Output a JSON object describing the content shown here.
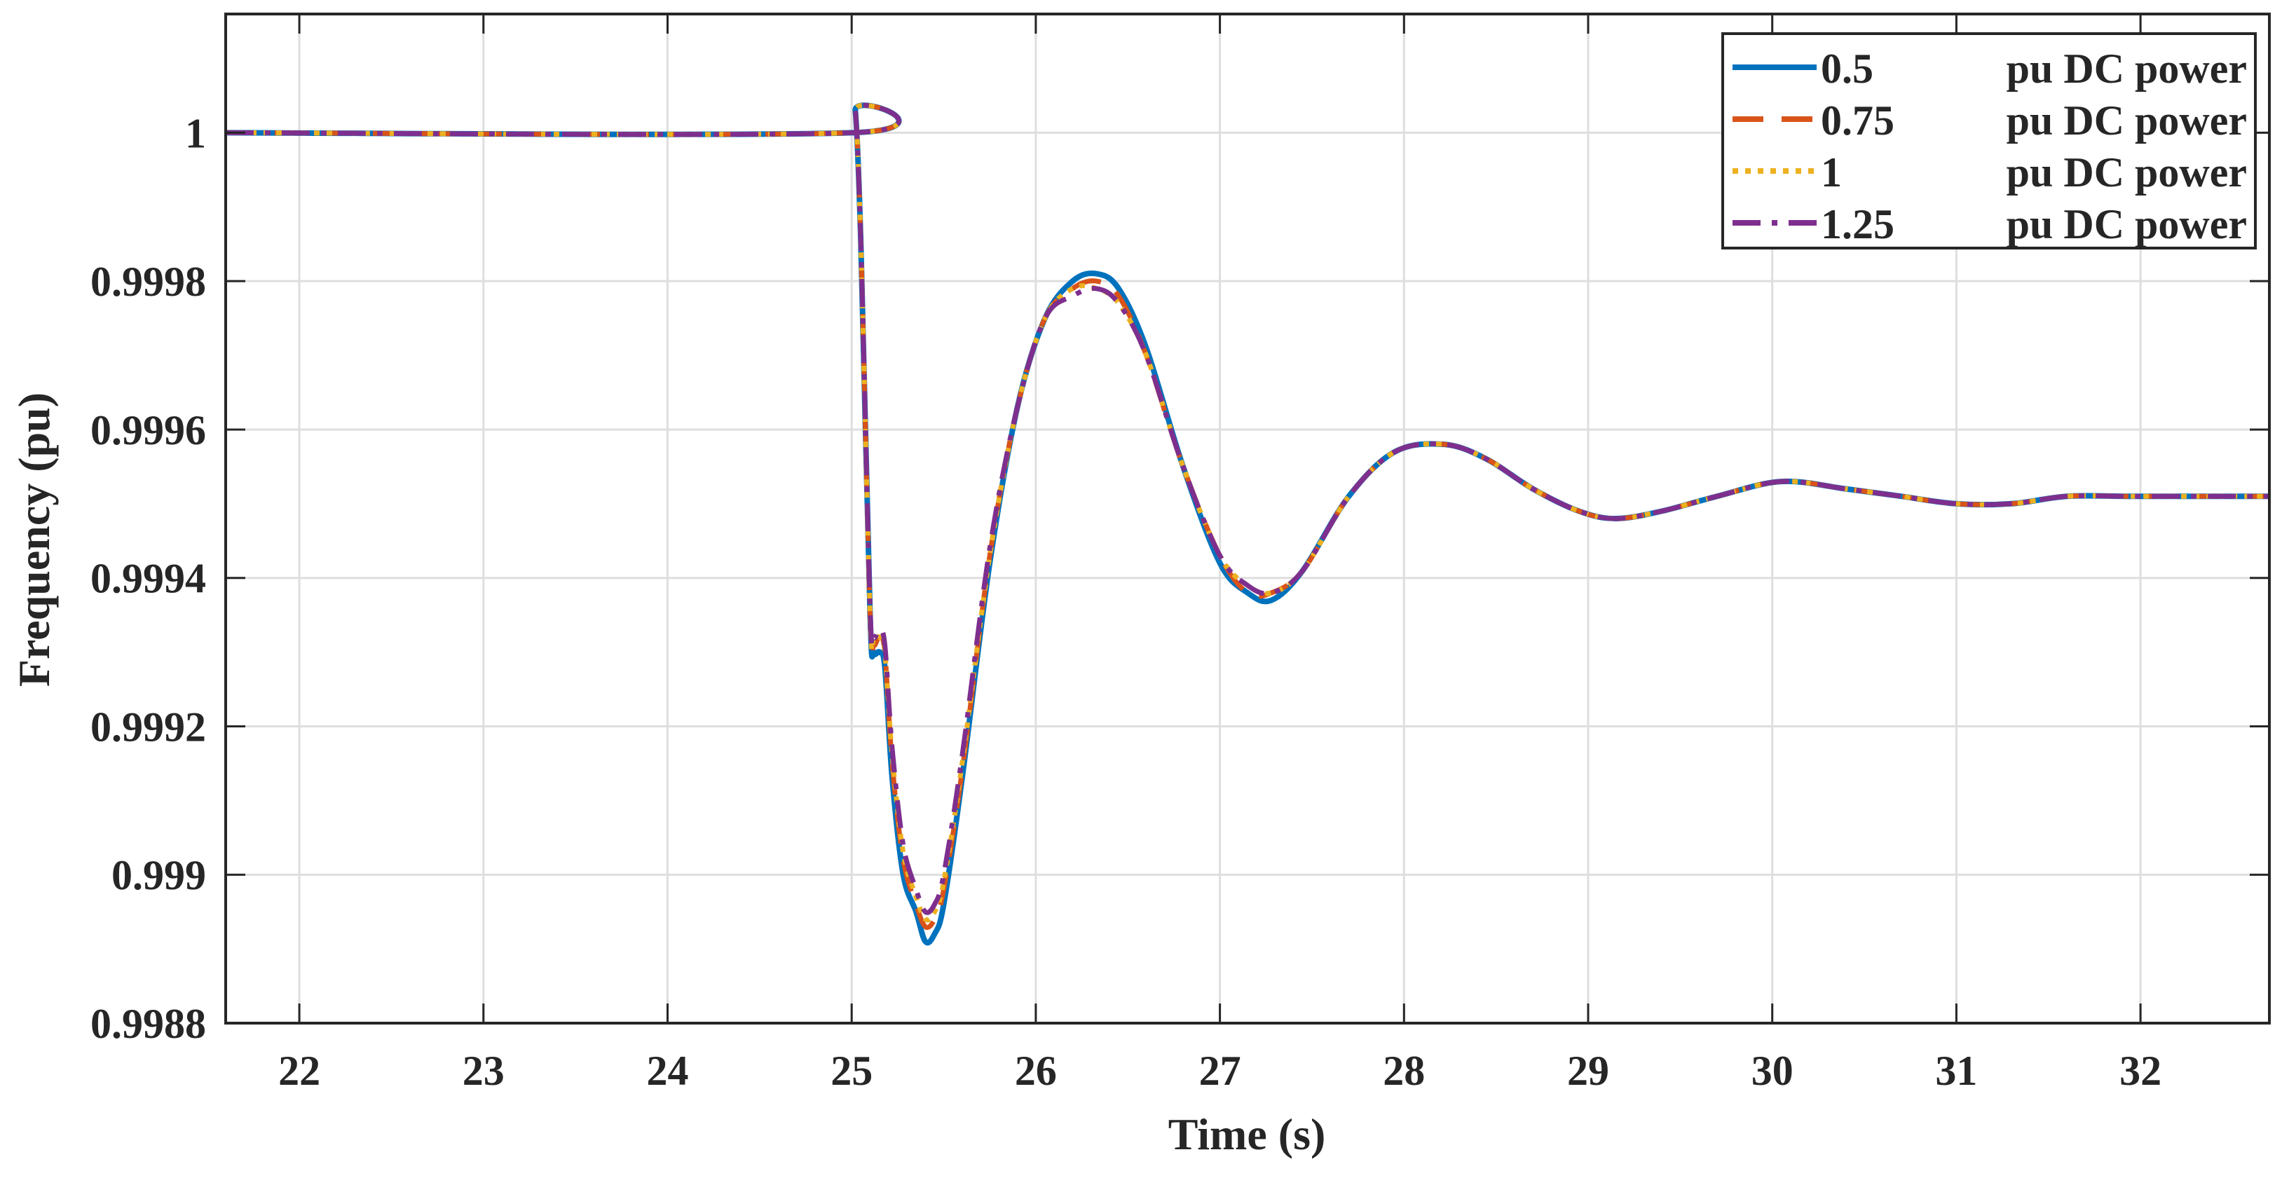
{
  "chart_data": {
    "type": "line",
    "title": "",
    "xlabel": "Time (s)",
    "ylabel": "Frequency (pu)",
    "xlim": [
      21.6,
      32.7
    ],
    "ylim": [
      0.9988,
      1.00016
    ],
    "xticks": [
      22,
      23,
      24,
      25,
      26,
      27,
      28,
      29,
      30,
      31,
      32
    ],
    "xtick_labels": [
      "22",
      "23",
      "24",
      "25",
      "26",
      "27",
      "28",
      "29",
      "30",
      "31",
      "32"
    ],
    "yticks": [
      0.9988,
      0.999,
      0.9992,
      0.9994,
      0.9996,
      0.9998,
      1.0
    ],
    "ytick_labels": [
      "0.9988",
      "0.999",
      "0.9992",
      "0.9994",
      "0.9996",
      "0.9998",
      "1"
    ],
    "grid": true,
    "legend_position": "top-right",
    "series": [
      {
        "name": "0.5",
        "legend_unit": "pu DC power",
        "color": "#0072BD",
        "dash": "solid",
        "x": [
          21.6,
          25.0,
          25.02,
          25.05,
          25.1,
          25.12,
          25.15,
          25.18,
          25.22,
          25.28,
          25.35,
          25.4,
          25.45,
          25.5,
          25.6,
          25.75,
          25.9,
          26.05,
          26.2,
          26.33,
          26.45,
          26.6,
          26.8,
          27.0,
          27.15,
          27.28,
          27.45,
          27.7,
          27.95,
          28.22,
          28.45,
          28.7,
          28.95,
          29.15,
          29.4,
          29.7,
          30.05,
          30.4,
          30.7,
          31.0,
          31.3,
          31.6,
          31.95,
          32.3,
          32.7
        ],
        "y": [
          1.0,
          1.0,
          1.00003,
          0.99985,
          0.99935,
          0.9993,
          0.9993,
          0.99928,
          0.99913,
          0.999,
          0.99895,
          0.99891,
          0.99892,
          0.99896,
          0.99913,
          0.99942,
          0.99963,
          0.99975,
          0.9998,
          0.99981,
          0.99979,
          0.99971,
          0.99955,
          0.99942,
          0.99938,
          0.99937,
          0.99941,
          0.99951,
          0.99957,
          0.99958,
          0.99956,
          0.99952,
          0.99949,
          0.99948,
          0.99949,
          0.99951,
          0.99953,
          0.99952,
          0.99951,
          0.9995,
          0.9995,
          0.99951,
          0.99951,
          0.99951,
          0.99951
        ]
      },
      {
        "name": "0.75",
        "legend_unit": "pu DC power",
        "color": "#D95319",
        "dash": "dash",
        "x": [
          21.6,
          25.0,
          25.02,
          25.05,
          25.1,
          25.12,
          25.15,
          25.18,
          25.22,
          25.28,
          25.35,
          25.4,
          25.45,
          25.5,
          25.6,
          25.75,
          25.9,
          26.05,
          26.2,
          26.33,
          26.45,
          26.6,
          26.8,
          27.0,
          27.15,
          27.28,
          27.45,
          27.7,
          27.95,
          28.22,
          28.45,
          28.7,
          28.95,
          29.15,
          29.4,
          29.7,
          30.05,
          30.4,
          30.7,
          31.0,
          31.3,
          31.6,
          31.95,
          32.3,
          32.7
        ],
        "y": [
          1.0,
          1.0,
          1.00003,
          0.99985,
          0.99935,
          0.99931,
          0.99932,
          0.9993,
          0.99915,
          0.99902,
          0.99896,
          0.99893,
          0.99894,
          0.99898,
          0.99914,
          0.99943,
          0.99963,
          0.99975,
          0.99979,
          0.9998,
          0.99978,
          0.9997,
          0.99955,
          0.99943,
          0.99938,
          0.99938,
          0.99941,
          0.99951,
          0.99957,
          0.99958,
          0.99956,
          0.99952,
          0.99949,
          0.99948,
          0.99949,
          0.99951,
          0.99953,
          0.99952,
          0.99951,
          0.9995,
          0.9995,
          0.99951,
          0.99951,
          0.99951,
          0.99951
        ]
      },
      {
        "name": "1",
        "legend_unit": "pu DC power",
        "color": "#EDB120",
        "dash": "dot",
        "x": [
          21.6,
          25.0,
          25.02,
          25.05,
          25.1,
          25.12,
          25.15,
          25.18,
          25.22,
          25.28,
          25.35,
          25.4,
          25.45,
          25.5,
          25.6,
          25.75,
          25.9,
          26.05,
          26.2,
          26.33,
          26.45,
          26.6,
          26.8,
          27.0,
          27.15,
          27.28,
          27.45,
          27.7,
          27.95,
          28.22,
          28.45,
          28.7,
          28.95,
          29.15,
          29.4,
          29.7,
          30.05,
          30.4,
          30.7,
          31.0,
          31.3,
          31.6,
          31.95,
          32.3,
          32.7
        ],
        "y": [
          1.0,
          1.0,
          1.00003,
          0.99985,
          0.99935,
          0.99932,
          0.99932,
          0.9993,
          0.99916,
          0.99903,
          0.99897,
          0.99894,
          0.99895,
          0.99899,
          0.99915,
          0.99943,
          0.99963,
          0.99975,
          0.99979,
          0.99979,
          0.99977,
          0.9997,
          0.99955,
          0.99943,
          0.99939,
          0.99938,
          0.99941,
          0.99951,
          0.99957,
          0.99958,
          0.99956,
          0.99952,
          0.99949,
          0.99948,
          0.99949,
          0.99951,
          0.99953,
          0.99952,
          0.99951,
          0.9995,
          0.9995,
          0.99951,
          0.99951,
          0.99951,
          0.99951
        ]
      },
      {
        "name": "1.25",
        "legend_unit": "pu DC power",
        "color": "#7E2F8E",
        "dash": "dashdot",
        "x": [
          21.6,
          25.0,
          25.02,
          25.05,
          25.1,
          25.12,
          25.15,
          25.18,
          25.22,
          25.28,
          25.35,
          25.4,
          25.45,
          25.5,
          25.6,
          25.75,
          25.9,
          26.05,
          26.2,
          26.33,
          26.45,
          26.6,
          26.8,
          27.0,
          27.15,
          27.28,
          27.45,
          27.7,
          27.95,
          28.22,
          28.45,
          28.7,
          28.95,
          29.15,
          29.4,
          29.7,
          30.05,
          30.4,
          30.7,
          31.0,
          31.3,
          31.6,
          31.95,
          32.3,
          32.7
        ],
        "y": [
          1.0,
          1.0,
          1.00003,
          0.99985,
          0.99936,
          0.99932,
          0.99933,
          0.99931,
          0.99917,
          0.99904,
          0.99898,
          0.99895,
          0.99896,
          0.999,
          0.99916,
          0.99944,
          0.99963,
          0.99975,
          0.99978,
          0.99979,
          0.99977,
          0.9997,
          0.99955,
          0.99943,
          0.99939,
          0.99938,
          0.99941,
          0.99951,
          0.99957,
          0.99958,
          0.99956,
          0.99952,
          0.99949,
          0.99948,
          0.99949,
          0.99951,
          0.99953,
          0.99952,
          0.99951,
          0.9995,
          0.9995,
          0.99951,
          0.99951,
          0.99951,
          0.99951
        ]
      }
    ]
  }
}
